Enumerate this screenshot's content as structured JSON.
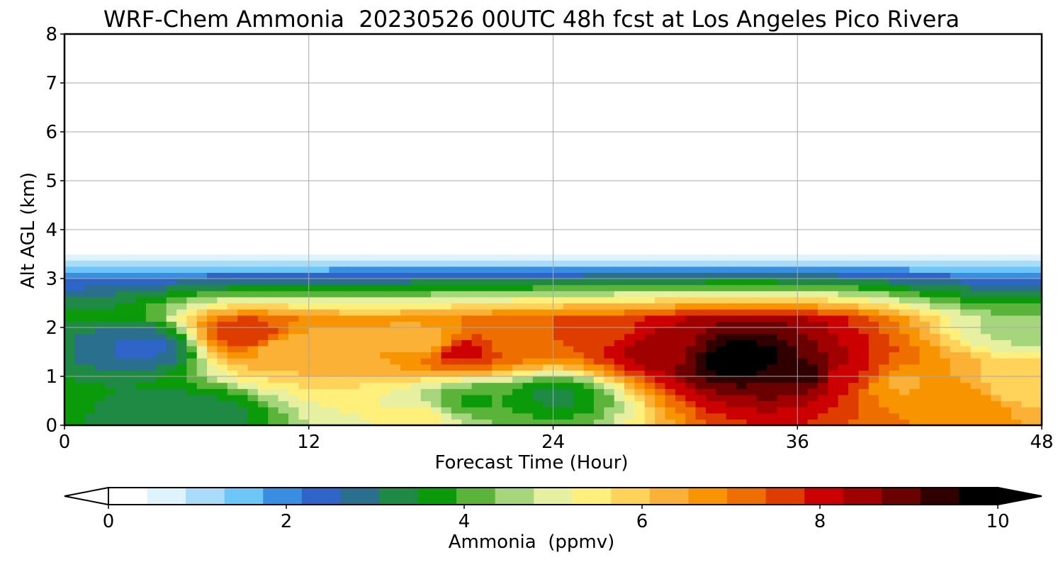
{
  "chart_data": {
    "type": "heatmap",
    "title": "WRF-Chem Ammonia  20230526 00UTC 48h fcst at Los Angeles Pico Rivera",
    "xlabel": "Forecast Time (Hour)",
    "ylabel": "Alt AGL (km)",
    "xlim": [
      0,
      48
    ],
    "ylim": [
      0,
      8
    ],
    "xticks": [
      0,
      12,
      24,
      36,
      48
    ],
    "yticks": [
      0,
      1,
      2,
      3,
      4,
      5,
      6,
      7,
      8
    ],
    "grid": true,
    "colorbar": {
      "label": "Ammonia  (ppmv)",
      "range": [
        0,
        10
      ],
      "ticks": [
        0,
        2,
        4,
        6,
        8,
        10
      ],
      "orientation": "horizontal",
      "extend": "both",
      "colors": [
        "#ffffff",
        "#dff3fd",
        "#a8dcf8",
        "#6ec6f6",
        "#3a8ee2",
        "#2f64c8",
        "#2a6f8e",
        "#1f8a43",
        "#0a9a0a",
        "#5ab43a",
        "#a6d67c",
        "#e6f0a0",
        "#fff07c",
        "#ffd25a",
        "#fbb036",
        "#f79400",
        "#ee6e00",
        "#df3c00",
        "#cc0000",
        "#a00000",
        "#6a0000",
        "#300000",
        "#000000"
      ]
    },
    "features": [
      {
        "x": 9,
        "y": 1.85,
        "value": 7.9
      },
      {
        "x": 11,
        "y": 1.6,
        "value": 6.2
      },
      {
        "x": 4,
        "y": 1.6,
        "value": 2.4
      },
      {
        "x": 18,
        "y": 1.7,
        "value": 6.2
      },
      {
        "x": 19.5,
        "y": 1.55,
        "value": 8.4
      },
      {
        "x": 22,
        "y": 1.7,
        "value": 7.2
      },
      {
        "x": 25.5,
        "y": 1.9,
        "value": 7.6
      },
      {
        "x": 29,
        "y": 1.55,
        "value": 8.6
      },
      {
        "x": 33,
        "y": 1.35,
        "value": 10.2
      },
      {
        "x": 36.5,
        "y": 1.05,
        "value": 9.6
      },
      {
        "x": 38.5,
        "y": 1.0,
        "value": 8.0
      },
      {
        "x": 41,
        "y": 0.85,
        "value": 6.5
      },
      {
        "x": 44,
        "y": 0.45,
        "value": 7.0
      },
      {
        "x": 47,
        "y": 0.8,
        "value": 5.8
      },
      {
        "x": 47,
        "y": 2.0,
        "value": 4.6
      },
      {
        "x": 24,
        "y": 0.6,
        "value": 3.3
      },
      {
        "x": 20,
        "y": 0.5,
        "value": 3.8
      },
      {
        "x": 17.5,
        "y": 0.2,
        "value": 5.3
      },
      {
        "x": 6,
        "y": 0.2,
        "value": 3.0
      }
    ]
  }
}
